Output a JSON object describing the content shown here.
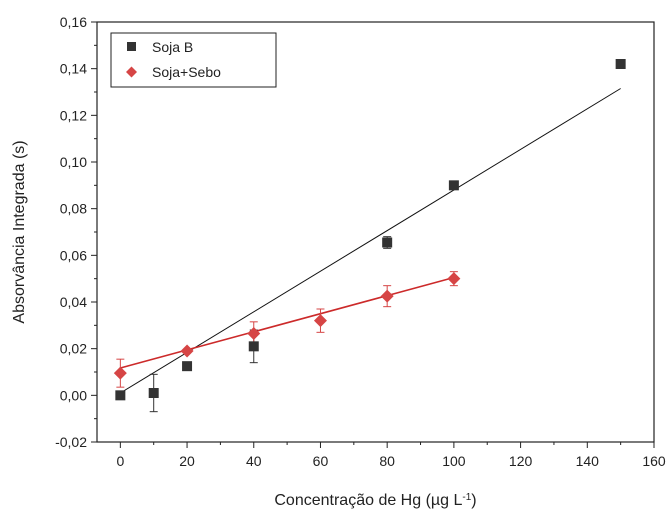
{
  "chart_data": {
    "type": "scatter",
    "title": "",
    "xlabel": "Concentração de Hg (µg L",
    "xlabel_sup": "-1",
    "xlabel_suffix": ")",
    "ylabel": "Absorvância Integrada (s)",
    "xlim": [
      -7,
      160
    ],
    "ylim": [
      -0.02,
      0.16
    ],
    "x_ticks": [
      0,
      20,
      40,
      60,
      80,
      100,
      120,
      140,
      160
    ],
    "x_tick_labels": [
      "0",
      "20",
      "40",
      "60",
      "80",
      "100",
      "120",
      "140",
      "160"
    ],
    "y_ticks": [
      -0.02,
      0.0,
      0.02,
      0.04,
      0.06,
      0.08,
      0.1,
      0.12,
      0.14,
      0.16
    ],
    "y_tick_labels": [
      "-0,02",
      "0,00",
      "0,02",
      "0,04",
      "0,06",
      "0,08",
      "0,10",
      "0,12",
      "0,14",
      "0,16"
    ],
    "grid": false,
    "legend_position": "top-left",
    "series": [
      {
        "name": "Soja B",
        "marker": "square",
        "color": "#333333",
        "points": [
          {
            "x": 0,
            "y": 0.0,
            "err": 0
          },
          {
            "x": 10,
            "y": 0.001,
            "err": 0.008
          },
          {
            "x": 20,
            "y": 0.0125,
            "err": 0
          },
          {
            "x": 40,
            "y": 0.021,
            "err": 0.007
          },
          {
            "x": 80,
            "y": 0.0655,
            "err": 0.0025
          },
          {
            "x": 100,
            "y": 0.09,
            "err": 0.001
          },
          {
            "x": 150,
            "y": 0.142,
            "err": 0
          }
        ],
        "fit": {
          "x": [
            0,
            150
          ],
          "y": [
            0.001,
            0.1315
          ],
          "color": "#111111"
        }
      },
      {
        "name": "Soja+Sebo",
        "marker": "diamond",
        "color": "#d64545",
        "points": [
          {
            "x": 0,
            "y": 0.0095,
            "err": 0.006
          },
          {
            "x": 20,
            "y": 0.019,
            "err": 0
          },
          {
            "x": 40,
            "y": 0.0265,
            "err": 0.005
          },
          {
            "x": 60,
            "y": 0.032,
            "err": 0.005
          },
          {
            "x": 80,
            "y": 0.0425,
            "err": 0.0045
          },
          {
            "x": 100,
            "y": 0.05,
            "err": 0.003
          }
        ],
        "fit": {
          "x": [
            0,
            100
          ],
          "y": [
            0.0117,
            0.0505
          ],
          "color": "#cc2a2a"
        }
      }
    ]
  }
}
